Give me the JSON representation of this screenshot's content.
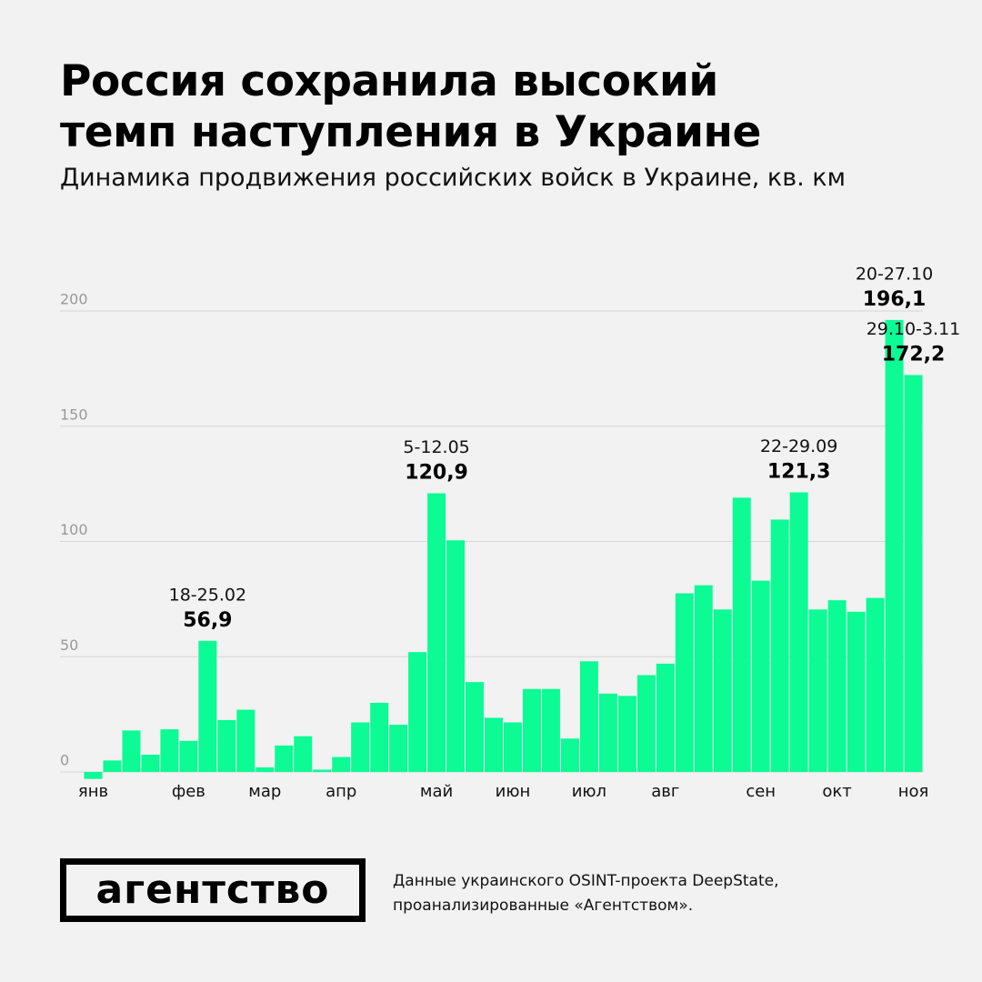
{
  "chart_data": {
    "type": "bar",
    "title": "Россия сохранила высокий темп наступления в Украине",
    "subtitle": "Динамика продвижения российских войск в Украине, кв. км",
    "categories": [
      "янв",
      null,
      null,
      null,
      null,
      "фев",
      null,
      null,
      null,
      "мар",
      null,
      null,
      null,
      "апр",
      null,
      null,
      null,
      null,
      "май",
      null,
      null,
      null,
      "июн",
      null,
      null,
      null,
      "июл",
      null,
      null,
      null,
      "авг",
      null,
      null,
      null,
      null,
      "сен",
      null,
      null,
      null,
      "окт",
      null,
      null,
      null,
      "ноя"
    ],
    "values": [
      -3,
      5,
      18,
      7.5,
      18.5,
      13.5,
      56.9,
      22.5,
      27,
      2,
      11.5,
      15.5,
      1,
      6.5,
      21.5,
      30,
      20.5,
      52,
      120.9,
      100.5,
      39,
      23.5,
      21.5,
      36,
      36,
      14.5,
      48,
      34,
      33,
      42,
      47,
      77.5,
      81,
      70.5,
      119,
      83,
      109.5,
      121.3,
      70.5,
      74.5,
      69.5,
      75.5,
      196.1,
      172.2
    ],
    "value_labels": [
      null,
      null,
      null,
      null,
      null,
      null,
      "56,9",
      null,
      null,
      null,
      null,
      null,
      null,
      null,
      null,
      null,
      null,
      null,
      "120,9",
      null,
      null,
      null,
      null,
      null,
      null,
      null,
      null,
      null,
      null,
      null,
      null,
      null,
      null,
      null,
      null,
      null,
      null,
      "121,3",
      null,
      null,
      null,
      null,
      "196,1",
      "172,2"
    ],
    "period_labels": [
      null,
      null,
      null,
      null,
      null,
      null,
      "18-25.02",
      null,
      null,
      null,
      null,
      null,
      null,
      null,
      null,
      null,
      null,
      null,
      "5-12.05",
      null,
      null,
      null,
      null,
      null,
      null,
      null,
      null,
      null,
      null,
      null,
      null,
      null,
      null,
      null,
      null,
      null,
      null,
      "22-29.09",
      null,
      null,
      null,
      null,
      "20-27.10",
      "29.10-3.11"
    ],
    "color": "#0cfb95",
    "ylim": [
      0,
      200
    ],
    "yticks": [
      0,
      50,
      100,
      150,
      200
    ],
    "grid": true,
    "footer": {
      "logo": "агентство",
      "source": [
        "Данные украинского OSINT-проекта DeepState,",
        "проанализированные «Агентством»."
      ]
    }
  }
}
